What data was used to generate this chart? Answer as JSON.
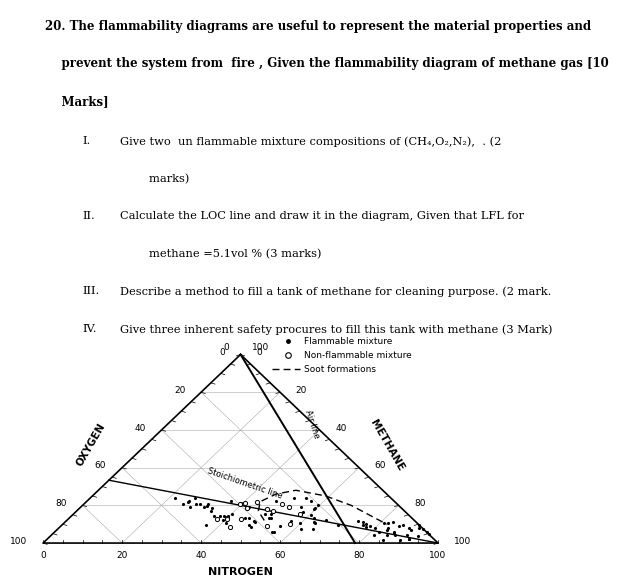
{
  "legend_entries": [
    "Flammable mixture",
    "Non-flammable mixture",
    "Soot formations"
  ],
  "nitrogen_label": "NITROGEN",
  "oxygen_label": "OXYGEN",
  "methane_label": "METHANE",
  "air_line_label": "Air line",
  "stoich_label": "Stoichiometric line",
  "axis_ticks": [
    0,
    20,
    40,
    60,
    80,
    100
  ],
  "bg_color": "#ffffff",
  "grid_color": "#aaaaaa",
  "title_lines": [
    "20. The flammability diagrams are useful to represent the material properties and",
    "    prevent the system from  fire , Given the flammability diagram of methane gas [10",
    "    Marks]"
  ],
  "item_rows": [
    [
      "I.",
      "Give two  un flammable mixture compositions of (CH₄,O₂,N₂),  . (2"
    ],
    [
      "",
      "        marks)"
    ],
    [
      "II.",
      "Calculate the LOC line and draw it in the diagram, Given that LFL for"
    ],
    [
      "",
      "        methane =5.1vol % (3 marks)"
    ],
    [
      "III.",
      "Describe a method to fill a tank of methane for cleaning purpose. (2 mark."
    ],
    [
      "IV.",
      "Give three inherent safety procures to fill this tank with methane (3 Mark)"
    ]
  ],
  "text_fontsize": 8.5,
  "item_fontsize": 8.2
}
